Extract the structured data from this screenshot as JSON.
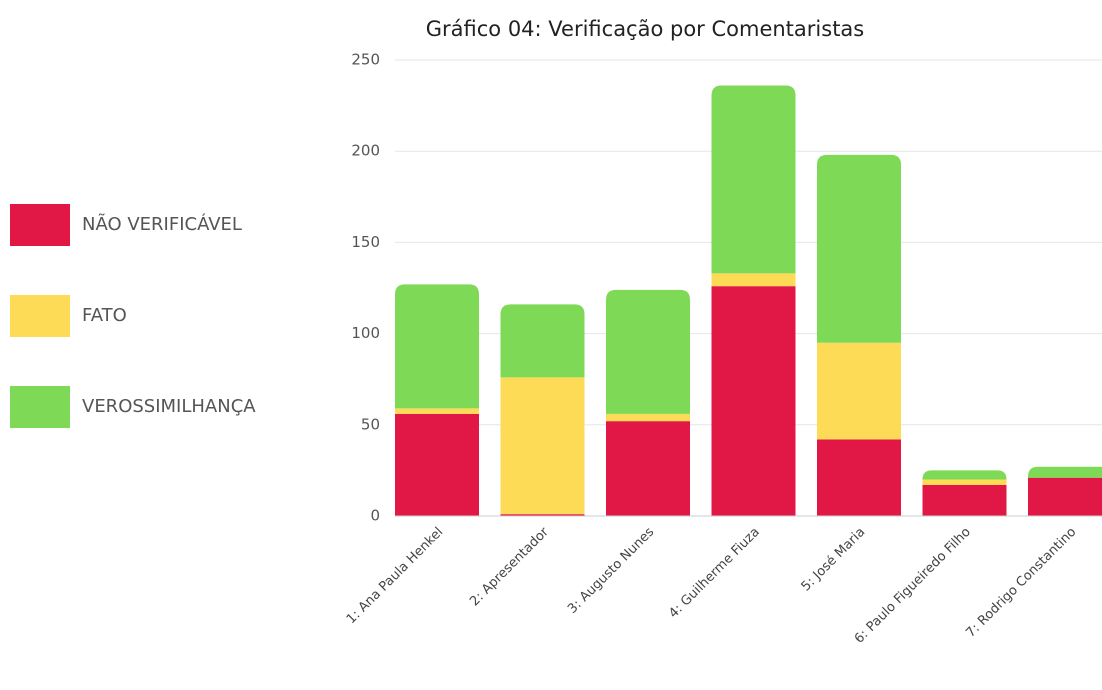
{
  "chart_data": {
    "type": "stacked_bar",
    "title": "Gráfico 04: Verificação por Comentaristas",
    "categories": [
      "1: Ana Paula Henkel",
      "2: Apresentador",
      "3: Augusto Nunes",
      "4: Guilherme Fiuza",
      "5: José Maria",
      "6: Paulo Figueiredo Filho",
      "7: Rodrigo Constantino"
    ],
    "series": [
      {
        "name": "NÃO VERIFICÁVEL",
        "color": "#e11845",
        "values": [
          56,
          1,
          52,
          126,
          42,
          17,
          21
        ]
      },
      {
        "name": "FATO",
        "color": "#fedb56",
        "values": [
          3,
          75,
          4,
          7,
          53,
          3,
          0
        ]
      },
      {
        "name": "VEROSSIMILHANÇA",
        "color": "#7ed957",
        "values": [
          68,
          40,
          68,
          103,
          103,
          5,
          6
        ]
      }
    ],
    "ylim": [
      0,
      250
    ],
    "yticks": [
      0,
      50,
      100,
      150,
      200,
      250
    ],
    "grid": true,
    "legend": "left"
  }
}
